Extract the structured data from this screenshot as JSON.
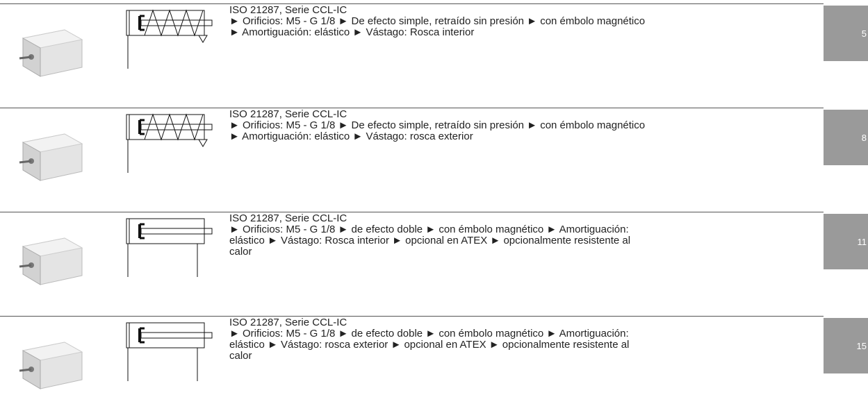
{
  "rows": [
    {
      "title": "ISO 21287, Serie CCL-IC",
      "lines": [
        "► Orificios: M5 - G 1/8 ► De efecto simple, retraído sin presión ► con émbolo magnético",
        "► Amortiguación: elástico ► Vástago: Rosca interior"
      ],
      "page": "5"
    },
    {
      "title": "ISO 21287, Serie CCL-IC",
      "lines": [
        "► Orificios: M5 - G 1/8 ► De efecto simple, retraído sin presión ► con émbolo magnético",
        "► Amortiguación: elástico ► Vástago: rosca exterior"
      ],
      "page": "8"
    },
    {
      "title": "ISO 21287, Serie CCL-IC",
      "lines": [
        "► Orificios: M5 - G 1/8 ► de efecto doble ► con émbolo magnético ► Amortiguación:",
        "elástico ► Vástago: Rosca interior ► opcional en ATEX ► opcionalmente resistente al",
        "calor"
      ],
      "page": "11"
    },
    {
      "title": "ISO 21287, Serie CCL-IC",
      "lines": [
        "► Orificios: M5 - G 1/8 ► de efecto doble ► con émbolo magnético ► Amortiguación:",
        "elástico ► Vástago: rosca exterior ► opcional en ATEX ► opcionalmente resistente al",
        "calor"
      ],
      "page": "15"
    }
  ]
}
